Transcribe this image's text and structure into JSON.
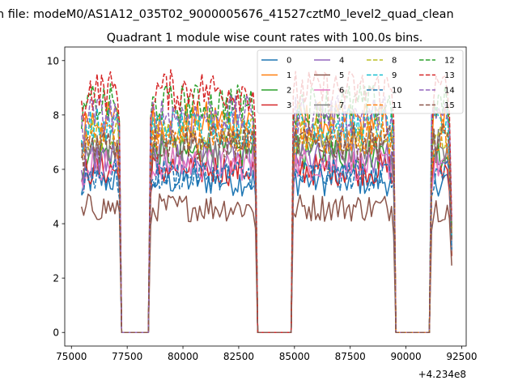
{
  "chart_data": {
    "type": "line",
    "suptitle": "n file: modeM0/AS1A12_035T02_9000005676_41527cztM0_level2_quad_clean",
    "title": "Quadrant 1 module wise count rates with 100.0s bins.",
    "xlabel": "",
    "ylabel": "",
    "x_offset_label": "+4.234e8",
    "xlim": [
      74700,
      92700
    ],
    "ylim": [
      -0.5,
      10.5
    ],
    "xticks": [
      75000,
      77500,
      80000,
      82500,
      85000,
      87500,
      90000,
      92500
    ],
    "xtick_labels": [
      "75000",
      "77500",
      "80000",
      "82500",
      "85000",
      "87500",
      "90000",
      "92500"
    ],
    "yticks": [
      0,
      2,
      4,
      6,
      8,
      10
    ],
    "ytick_labels": [
      "0",
      "2",
      "4",
      "6",
      "8",
      "10"
    ],
    "legend_position": "top-right",
    "legend_columns": 4,
    "orbit_segments": [
      [
        75450,
        77200
      ],
      [
        78500,
        83300
      ],
      [
        84900,
        89500
      ],
      [
        91100,
        92050
      ]
    ],
    "gaps_value": 0,
    "series": [
      {
        "name": "0",
        "color": "#1f77b4",
        "dashed": false,
        "level": 5.6
      },
      {
        "name": "1",
        "color": "#ff7f0e",
        "dashed": false,
        "level": 7.8
      },
      {
        "name": "2",
        "color": "#2ca02c",
        "dashed": false,
        "level": 6.6
      },
      {
        "name": "3",
        "color": "#d62728",
        "dashed": false,
        "level": 6.0
      },
      {
        "name": "4",
        "color": "#9467bd",
        "dashed": false,
        "level": 6.4
      },
      {
        "name": "5",
        "color": "#8c564b",
        "dashed": false,
        "level": 4.6
      },
      {
        "name": "6",
        "color": "#e377c2",
        "dashed": false,
        "level": 6.2
      },
      {
        "name": "7",
        "color": "#7f7f7f",
        "dashed": false,
        "level": 6.9
      },
      {
        "name": "8",
        "color": "#bcbd22",
        "dashed": true,
        "level": 7.3
      },
      {
        "name": "9",
        "color": "#17becf",
        "dashed": true,
        "level": 7.6
      },
      {
        "name": "10",
        "color": "#1f77b4",
        "dashed": true,
        "level": 5.8
      },
      {
        "name": "11",
        "color": "#ff7f0e",
        "dashed": true,
        "level": 7.2
      },
      {
        "name": "12",
        "color": "#2ca02c",
        "dashed": true,
        "level": 8.4
      },
      {
        "name": "13",
        "color": "#d62728",
        "dashed": true,
        "level": 8.9
      },
      {
        "name": "14",
        "color": "#9467bd",
        "dashed": true,
        "level": 8.0
      },
      {
        "name": "15",
        "color": "#8c564b",
        "dashed": true,
        "level": 7.0
      }
    ]
  }
}
